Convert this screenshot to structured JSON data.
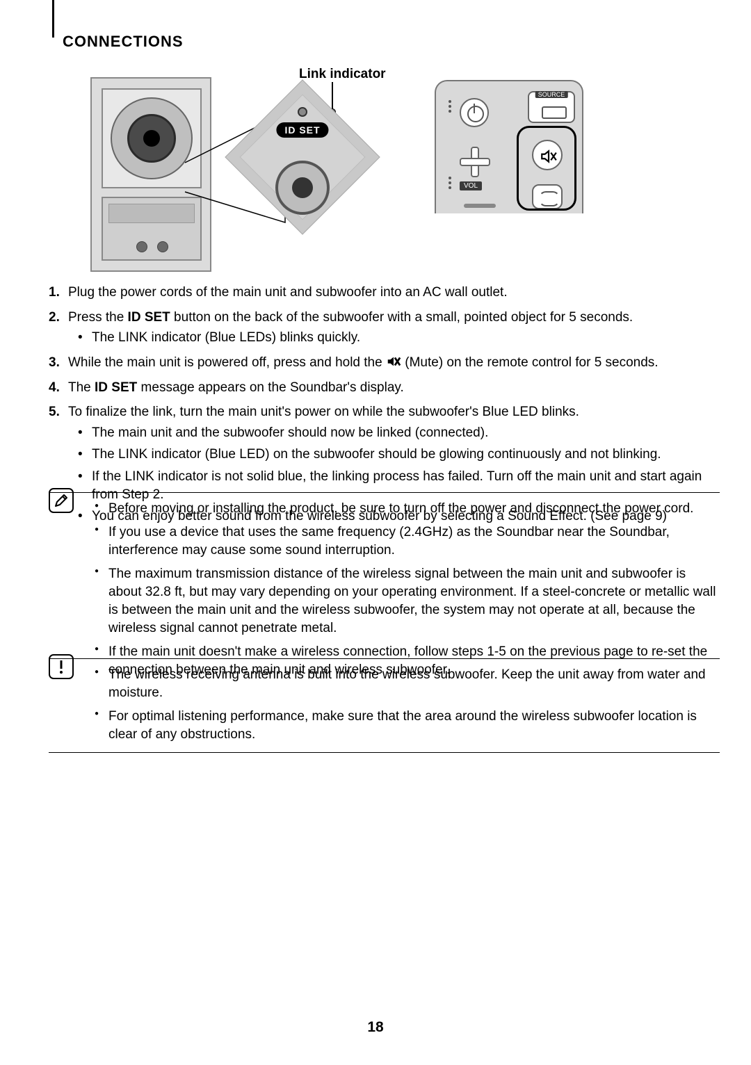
{
  "section_title": "CONNECTIONS",
  "diagram": {
    "link_indicator_label": "Link indicator",
    "idset_label": "ID SET",
    "remote": {
      "source_label": "SOURCE",
      "vol_label": "VOL"
    }
  },
  "steps": [
    {
      "num": "1.",
      "text": "Plug the power cords of the main unit and subwoofer into an AC wall outlet."
    },
    {
      "num": "2.",
      "prefix": "Press the ",
      "bold": "ID SET",
      "suffix": " button on the back of the subwoofer with a small, pointed object for 5 seconds.",
      "sub": [
        "The LINK indicator (Blue LEDs) blinks quickly."
      ]
    },
    {
      "num": "3.",
      "prefix": "While the main unit is powered off, press and hold the ",
      "mute_icon": true,
      "after_icon": " (Mute) on the remote control for 5 seconds."
    },
    {
      "num": "4.",
      "prefix": "The ",
      "bold": "ID SET",
      "suffix": " message appears on the Soundbar's display."
    },
    {
      "num": "5.",
      "text": "To finalize the link, turn the main unit's power on while the subwoofer's Blue LED blinks.",
      "sub": [
        "The main unit and the subwoofer should now be linked (connected).",
        "The LINK indicator (Blue LED) on the subwoofer should be glowing continuously and not blinking.",
        "If the LINK indicator is not solid blue, the linking process has failed. Turn off the main unit and start again from Step 2.",
        "You can enjoy better sound from the wireless subwoofer by selecting a Sound Effect. (See page 9)"
      ]
    }
  ],
  "notes": [
    "Before moving or installing the product, be sure to turn off the power and disconnect the power cord.",
    "If you use a device that uses the same frequency (2.4GHz) as the Soundbar near the Soundbar, interference may cause some sound interruption.",
    "The maximum transmission distance of the wireless signal between the main unit and subwoofer is about 32.8 ft, but may vary depending on your operating environment. If a steel-concrete or metallic wall is between the main unit and the wireless subwoofer, the system may not operate at all, because the wireless signal cannot penetrate metal.",
    "If the main unit doesn't make a wireless connection, follow steps 1-5 on the previous page to re-set the connection between the main unit and wireless subwoofer."
  ],
  "cautions": [
    "The wireless receiving antenna is built into the wireless subwoofer. Keep the unit away from water and moisture.",
    "For optimal listening performance, make sure that the area around the wireless subwoofer location is clear of any obstructions."
  ],
  "page_number": "18",
  "colors": {
    "text": "#000000",
    "gray": "#d0d0d0",
    "dark": "#4a4a4a"
  }
}
